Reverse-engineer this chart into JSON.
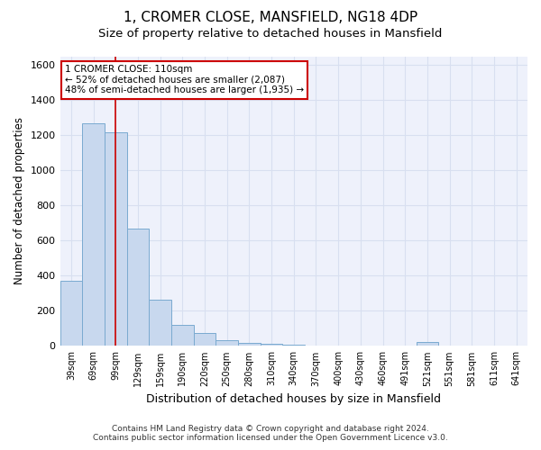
{
  "title": "1, CROMER CLOSE, MANSFIELD, NG18 4DP",
  "subtitle": "Size of property relative to detached houses in Mansfield",
  "xlabel": "Distribution of detached houses by size in Mansfield",
  "ylabel": "Number of detached properties",
  "footer_line1": "Contains HM Land Registry data © Crown copyright and database right 2024.",
  "footer_line2": "Contains public sector information licensed under the Open Government Licence v3.0.",
  "bins": [
    "39sqm",
    "69sqm",
    "99sqm",
    "129sqm",
    "159sqm",
    "190sqm",
    "220sqm",
    "250sqm",
    "280sqm",
    "310sqm",
    "340sqm",
    "370sqm",
    "400sqm",
    "430sqm",
    "460sqm",
    "491sqm",
    "521sqm",
    "551sqm",
    "581sqm",
    "611sqm",
    "641sqm"
  ],
  "values": [
    370,
    1270,
    1215,
    670,
    265,
    120,
    75,
    35,
    20,
    15,
    5,
    0,
    0,
    0,
    0,
    0,
    25,
    0,
    0,
    0,
    0
  ],
  "bar_color": "#c8d8ee",
  "bar_edge_color": "#7aaad0",
  "vline_x": 2.0,
  "vline_color": "#cc0000",
  "ylim": [
    0,
    1650
  ],
  "yticks": [
    0,
    200,
    400,
    600,
    800,
    1000,
    1200,
    1400,
    1600
  ],
  "annotation_text": "1 CROMER CLOSE: 110sqm\n← 52% of detached houses are smaller (2,087)\n48% of semi-detached houses are larger (1,935) →",
  "annotation_box_color": "#ffffff",
  "annotation_box_edge": "#cc0000",
  "bg_color": "#eef1fb",
  "grid_color": "#d8dff0",
  "title_fontsize": 11,
  "subtitle_fontsize": 9.5,
  "xlabel_fontsize": 9,
  "ylabel_fontsize": 8.5,
  "footer_fontsize": 6.5
}
